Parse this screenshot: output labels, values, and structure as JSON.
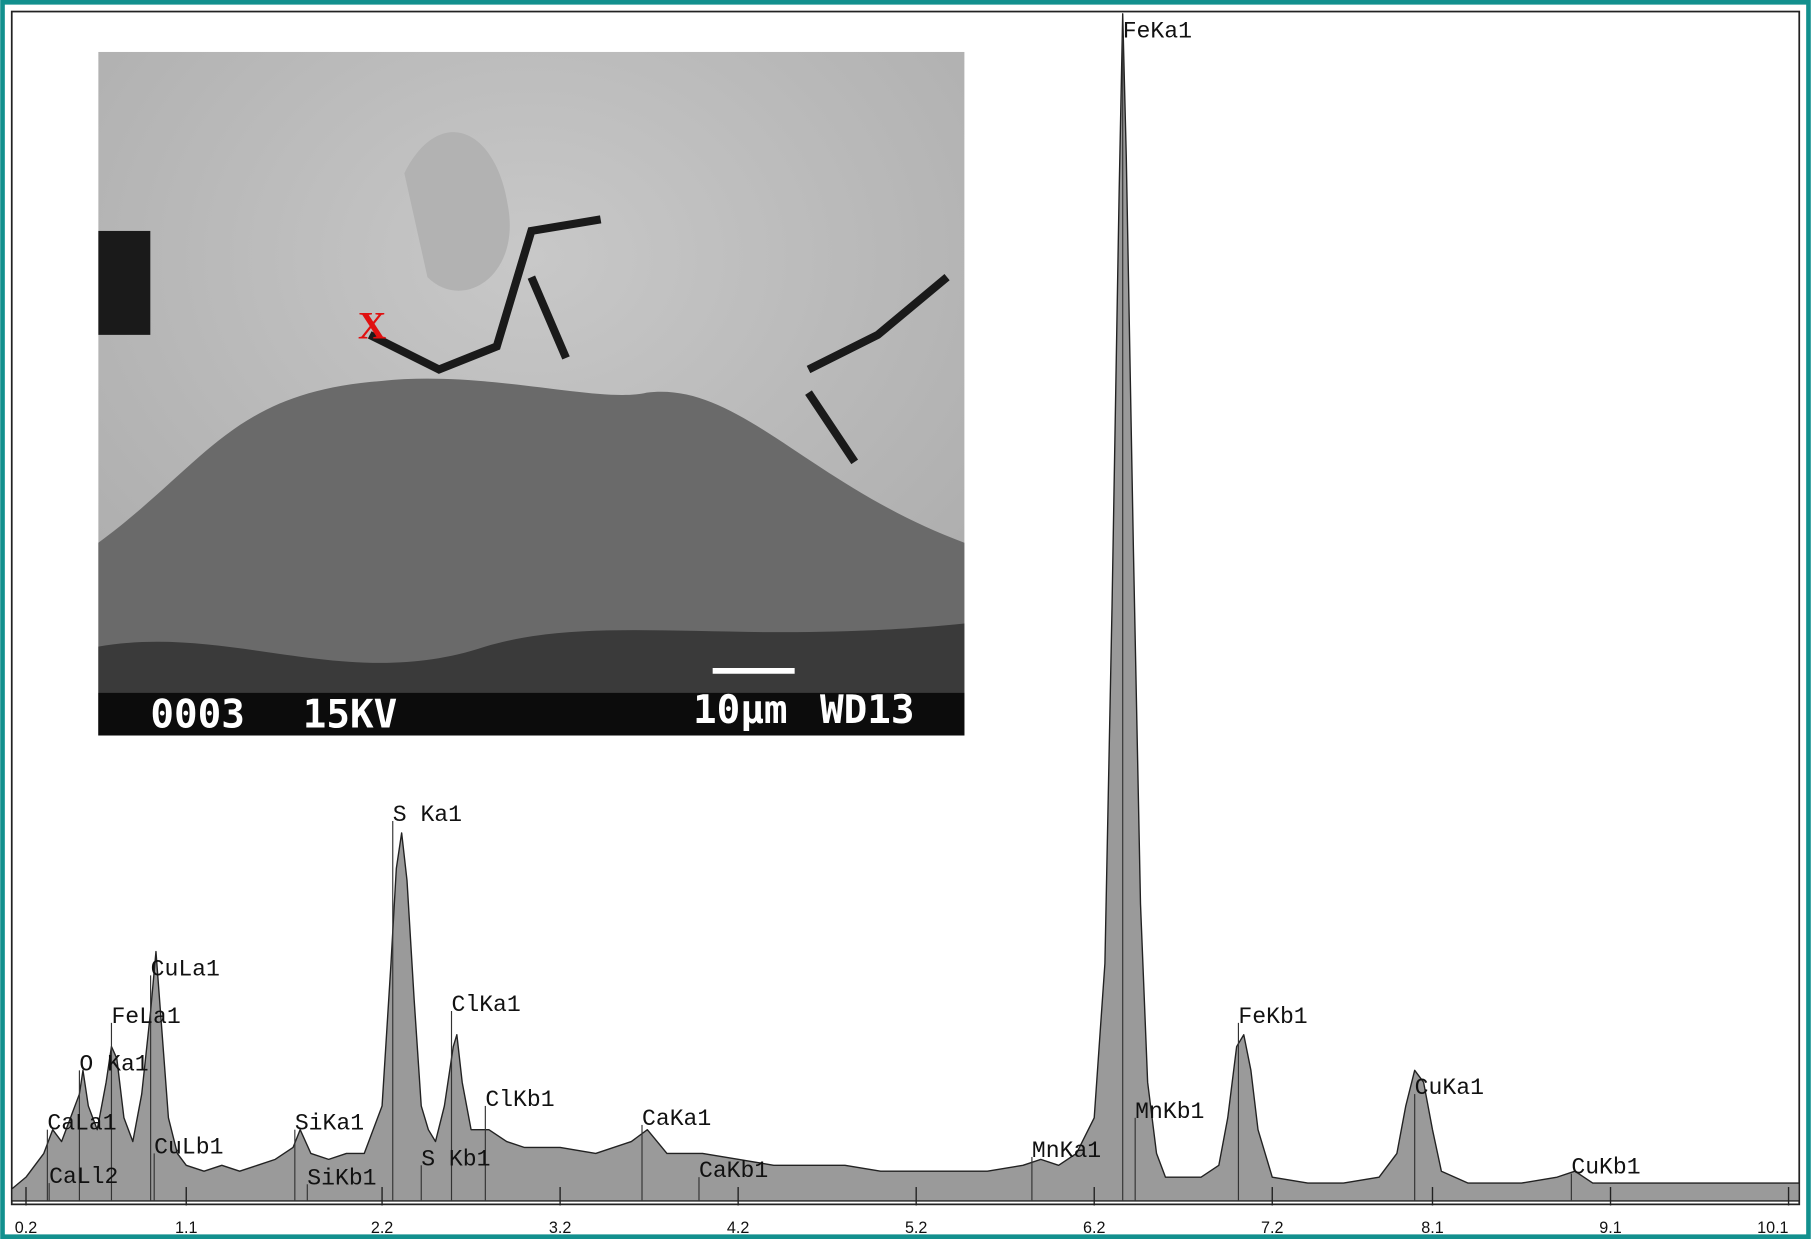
{
  "chart_data": {
    "type": "area",
    "x": [
      0.12,
      0.2,
      0.3,
      0.35,
      0.4,
      0.45,
      0.5,
      0.52,
      0.55,
      0.6,
      0.65,
      0.68,
      0.71,
      0.75,
      0.8,
      0.85,
      0.9,
      0.93,
      0.96,
      1.0,
      1.05,
      1.1,
      1.2,
      1.3,
      1.4,
      1.5,
      1.6,
      1.7,
      1.74,
      1.8,
      1.9,
      2.0,
      2.1,
      2.2,
      2.25,
      2.28,
      2.31,
      2.34,
      2.38,
      2.42,
      2.46,
      2.5,
      2.55,
      2.6,
      2.62,
      2.65,
      2.7,
      2.8,
      2.9,
      3.0,
      3.2,
      3.4,
      3.6,
      3.69,
      3.8,
      4.0,
      4.2,
      4.4,
      4.6,
      4.8,
      5.0,
      5.2,
      5.4,
      5.6,
      5.8,
      5.9,
      6.0,
      6.1,
      6.2,
      6.26,
      6.3,
      6.34,
      6.36,
      6.38,
      6.42,
      6.46,
      6.5,
      6.55,
      6.6,
      6.8,
      6.9,
      6.95,
      7.0,
      7.04,
      7.08,
      7.12,
      7.2,
      7.4,
      7.6,
      7.8,
      7.9,
      7.95,
      8.0,
      8.05,
      8.1,
      8.15,
      8.3,
      8.6,
      8.8,
      8.9,
      9.0,
      9.4,
      9.8,
      10.16
    ],
    "values": [
      1,
      2,
      4,
      6,
      5,
      7,
      9,
      11,
      8,
      6,
      10,
      13,
      12,
      7,
      5,
      9,
      16,
      21,
      15,
      7,
      4,
      3,
      2.5,
      3,
      2.5,
      3,
      3.5,
      4.5,
      6,
      4,
      3.5,
      4,
      4,
      8,
      20,
      28,
      31,
      27,
      17,
      8,
      6,
      5,
      8,
      13,
      14,
      10,
      6,
      6,
      5,
      4.5,
      4.5,
      4,
      5,
      6,
      4,
      4,
      3.5,
      3,
      3,
      3,
      2.5,
      2.5,
      2.5,
      2.5,
      3,
      3.5,
      3,
      4,
      7,
      20,
      50,
      85,
      100,
      88,
      55,
      25,
      10,
      4,
      2,
      2,
      3,
      7,
      13,
      14,
      11,
      6,
      2,
      1.5,
      1.5,
      2,
      4,
      8,
      11,
      10,
      6,
      2.5,
      1.5,
      1.5,
      2,
      2.5,
      1.5,
      1.5,
      1.5,
      1.5
    ],
    "color": "#9a9a9a",
    "xlim": [
      0.12,
      10.16
    ],
    "ylim": [
      0,
      100
    ],
    "xticks": [
      0.2,
      1.1,
      2.2,
      3.2,
      4.2,
      5.2,
      6.2,
      7.2,
      8.1,
      9.1,
      10.1
    ],
    "annotations": [
      {
        "text": "FeKa1",
        "x": 6.36,
        "y": 98
      },
      {
        "text": "S Ka1",
        "x": 2.26,
        "y": 32
      },
      {
        "text": "CuLa1",
        "x": 0.9,
        "y": 19
      },
      {
        "text": "FeLa1",
        "x": 0.68,
        "y": 15
      },
      {
        "text": "O Ka1",
        "x": 0.5,
        "y": 11
      },
      {
        "text": "CaLa1",
        "x": 0.32,
        "y": 6
      },
      {
        "text": "CaLl2",
        "x": 0.33,
        "y": 1.5
      },
      {
        "text": "CuLb1",
        "x": 0.92,
        "y": 4
      },
      {
        "text": "SiKa1",
        "x": 1.71,
        "y": 6
      },
      {
        "text": "SiKb1",
        "x": 1.78,
        "y": 1.4
      },
      {
        "text": "ClKa1",
        "x": 2.59,
        "y": 16
      },
      {
        "text": "ClKb1",
        "x": 2.78,
        "y": 8
      },
      {
        "text": "S Kb1",
        "x": 2.42,
        "y": 3
      },
      {
        "text": "CaKa1",
        "x": 3.66,
        "y": 6.4
      },
      {
        "text": "CaKb1",
        "x": 3.98,
        "y": 2
      },
      {
        "text": "MnKa1",
        "x": 5.85,
        "y": 3.7
      },
      {
        "text": "MnKb1",
        "x": 6.43,
        "y": 7
      },
      {
        "text": "FeKb1",
        "x": 7.01,
        "y": 15
      },
      {
        "text": "CuKa1",
        "x": 8.0,
        "y": 9
      },
      {
        "text": "CuKb1",
        "x": 8.88,
        "y": 2.3
      }
    ]
  },
  "inset": {
    "marker": "X",
    "image_number": "0003",
    "voltage": "15KV",
    "scale": "10µm",
    "working_distance": "WD13"
  }
}
